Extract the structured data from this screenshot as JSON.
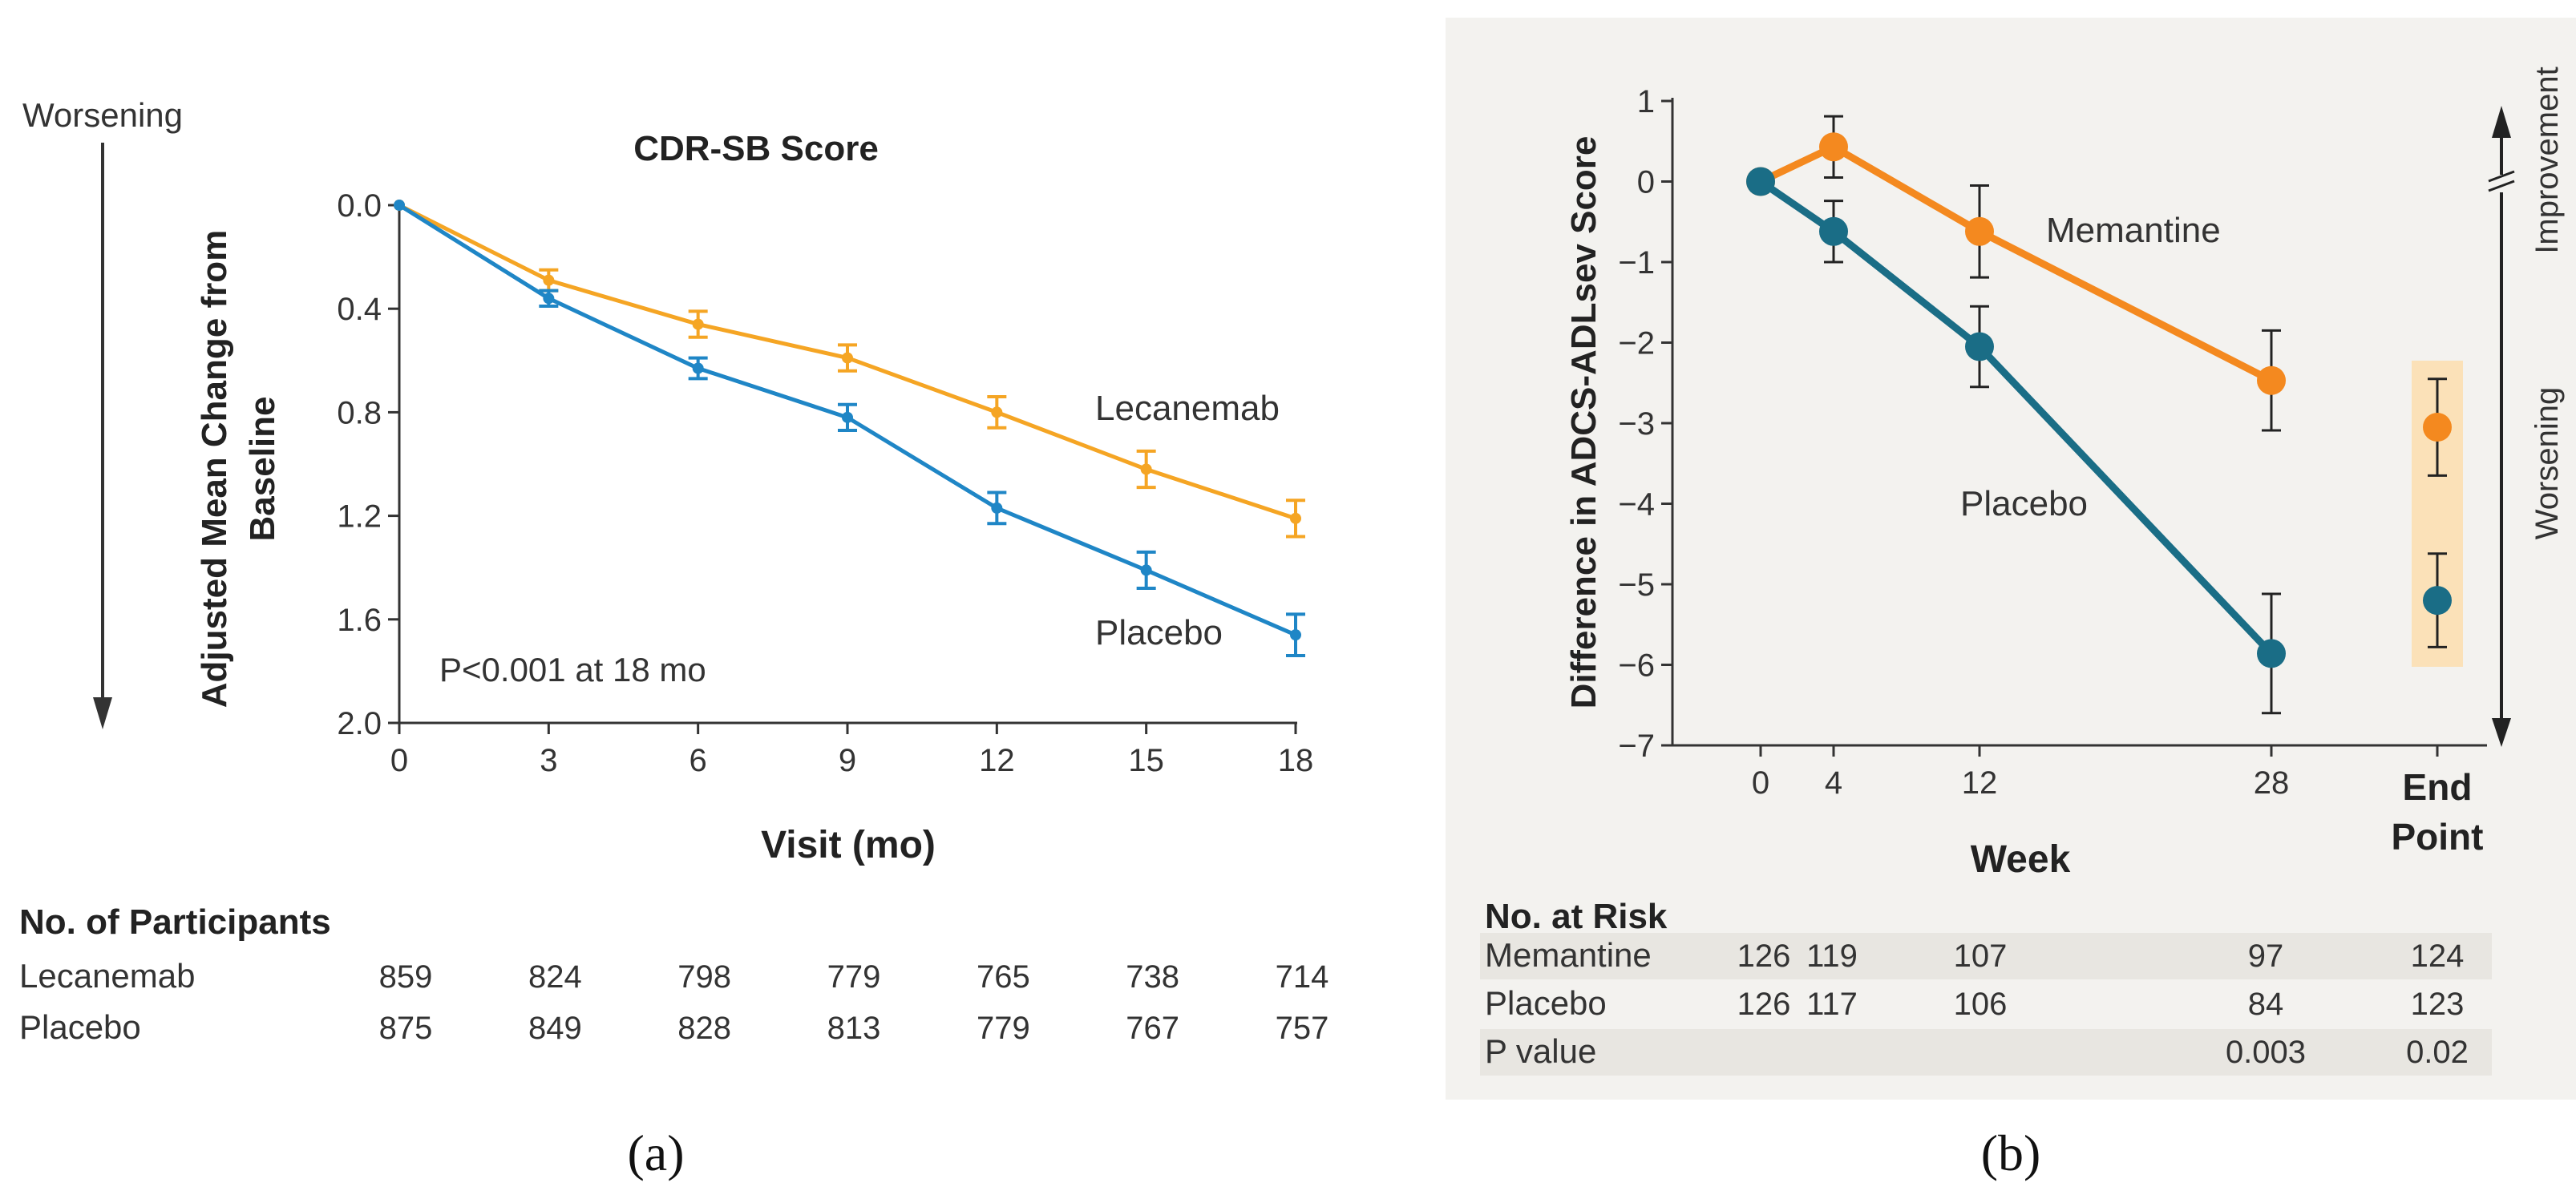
{
  "colors": {
    "lecanemab": "#f5a524",
    "placebo_a": "#1f86c6",
    "memantine": "#f4891f",
    "placebo_b": "#1a6d86",
    "axis": "#333333",
    "endpoint_band": "#fbe1b8"
  },
  "panel_a": {
    "worsening_label": "Worsening",
    "panel_label": "(a)",
    "p_value_note": "P<0.001 at 18 mo",
    "participants_title": "No. of Participants",
    "participants": [
      {
        "group": "Lecanemab",
        "counts": [
          "859",
          "824",
          "798",
          "779",
          "765",
          "738",
          "714"
        ]
      },
      {
        "group": "Placebo",
        "counts": [
          "875",
          "849",
          "828",
          "813",
          "779",
          "767",
          "757"
        ]
      }
    ]
  },
  "panel_b": {
    "panel_label": "(b)",
    "improvement_label": "Improvement",
    "worsening_label": "Worsening",
    "endpoint_label_line1": "End",
    "endpoint_label_line2": "Point",
    "risk_title": "No. at Risk",
    "risk_rows": [
      {
        "label": "Memantine",
        "cells": [
          "126",
          "119",
          "107",
          "97",
          "124"
        ]
      },
      {
        "label": "Placebo",
        "cells": [
          "126",
          "117",
          "106",
          "84",
          "123"
        ]
      },
      {
        "label": "P value",
        "cells": [
          "",
          "",
          "",
          "0.003",
          "0.02"
        ]
      }
    ]
  },
  "chart_data": [
    {
      "type": "line",
      "title": "CDR-SB Score",
      "xlabel": "Visit (mo)",
      "ylabel": "Adjusted Mean Change from Baseline",
      "x": [
        0,
        3,
        6,
        9,
        12,
        15,
        18
      ],
      "xticks": [
        "0",
        "3",
        "6",
        "9",
        "12",
        "15",
        "18"
      ],
      "ylim": [
        0,
        2.0
      ],
      "y_inverted": true,
      "yticks": [
        "0.0",
        "0.4",
        "0.8",
        "1.2",
        "1.6",
        "2.0"
      ],
      "series": [
        {
          "name": "Lecanemab",
          "values": [
            0.0,
            0.29,
            0.46,
            0.59,
            0.8,
            1.02,
            1.21
          ],
          "err": [
            0,
            0.04,
            0.05,
            0.05,
            0.06,
            0.07,
            0.07
          ]
        },
        {
          "name": "Placebo",
          "values": [
            0.0,
            0.36,
            0.63,
            0.82,
            1.17,
            1.41,
            1.66
          ],
          "err": [
            0,
            0.03,
            0.04,
            0.05,
            0.06,
            0.07,
            0.08
          ]
        }
      ]
    },
    {
      "type": "line",
      "xlabel": "Week",
      "ylabel": "Difference in ADCS-ADLsev Score",
      "x": [
        0,
        4,
        12,
        28
      ],
      "xticks": [
        "0",
        "4",
        "12",
        "28"
      ],
      "ylim": [
        -7,
        1
      ],
      "yticks": [
        "1",
        "0",
        "−1",
        "−2",
        "−3",
        "−4",
        "−5",
        "−6",
        "−7"
      ],
      "series": [
        {
          "name": "Memantine",
          "values": [
            0,
            0.43,
            -0.62,
            -2.47
          ],
          "err": [
            0,
            0.38,
            0.57,
            0.62
          ],
          "endpoint": -3.05,
          "endpoint_err": 0.6
        },
        {
          "name": "Placebo",
          "values": [
            0,
            -0.62,
            -2.05,
            -5.86
          ],
          "err": [
            0,
            0.38,
            0.5,
            0.74
          ],
          "endpoint": -5.2,
          "endpoint_err": 0.58
        }
      ]
    }
  ]
}
